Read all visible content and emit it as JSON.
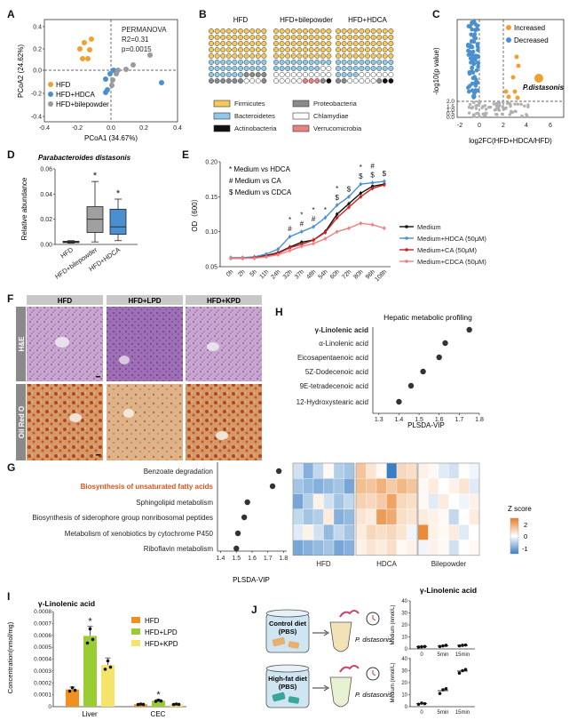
{
  "panel_letters": [
    "A",
    "B",
    "C",
    "D",
    "E",
    "F",
    "G",
    "H",
    "I",
    "J"
  ],
  "A": {
    "xlabel": "PCoA1 (34.67%)",
    "ylabel": "PCoA2 (24.62%)",
    "stats": [
      "PERMANOVA",
      "R2=0.31",
      "p=0.0015"
    ],
    "xticks": [
      "-0.4",
      "-0.2",
      "0.0",
      "0.2",
      "0.4"
    ],
    "yticks": [
      "0.4",
      "0.2",
      "0.0",
      "-0.2",
      "-0.4"
    ],
    "legend": [
      "HFD",
      "HFD+HDCA",
      "HFD+bilepowder"
    ],
    "colors": {
      "HFD": "#f0a030",
      "HFD+HDCA": "#4a90d0",
      "HFD+bilepowder": "#9a9a9a"
    }
  },
  "B": {
    "groups": [
      "HFD",
      "HFD+bilepowder",
      "HFD+HDCA"
    ],
    "legend": [
      "Firmicutes",
      "Proteobacteria",
      "Bacteroidetes",
      "Chlamydiae",
      "Actinobacteria",
      "Verrucomicrobia"
    ],
    "colors": {
      "Firmicutes": "#f5c85a",
      "Proteobacteria": "#8a8a8a",
      "Bacteroidetes": "#8ec9ea",
      "Chlamydiae": "#ffffff",
      "Actinobacteria": "#111111",
      "Verrucomicrobia": "#e88080"
    }
  },
  "C": {
    "xlabel": "log2FC(HFD+HDCA/HFD)",
    "ylabel": "-log10(p value)",
    "xticks": [
      "-2",
      "0",
      "2",
      "4",
      "6"
    ],
    "yticks": [
      "2.5",
      "2.0",
      "1.5",
      "1.0",
      "0.5",
      "0.0"
    ],
    "legend": [
      "Increased",
      "Decreased"
    ],
    "annotation": "P.distasonis",
    "colors": {
      "Increased": "#f0a030",
      "Decreased": "#4a90d0"
    }
  },
  "D": {
    "title": "Parabacteroides distasonis",
    "ylabel": "Relative abundance",
    "yticks": [
      "0.06",
      "0.04",
      "0.02",
      "0.00"
    ],
    "groups": [
      "HFD",
      "HFD+bilepowder",
      "HFD+HDCA"
    ],
    "star": "*"
  },
  "E": {
    "ylabel": "OD（600）",
    "yticks": [
      "0.20",
      "0.15",
      "0.10",
      "0.05"
    ],
    "xticks": [
      "0h",
      "2h",
      "5h",
      "11h",
      "24h",
      "32h",
      "37h",
      "48h",
      "54h",
      "60h",
      "72h",
      "80h",
      "96h",
      "108h"
    ],
    "key": [
      "* Medium vs HDCA",
      "# Medium vs CA",
      "$ Medium vs CDCA"
    ],
    "series": [
      {
        "name": "Medium",
        "color": "#111111",
        "values": [
          0.062,
          0.062,
          0.063,
          0.066,
          0.07,
          0.078,
          0.085,
          0.088,
          0.1,
          0.125,
          0.14,
          0.155,
          0.165,
          0.168
        ]
      },
      {
        "name": "Medium+HDCA (50μM)",
        "color": "#4a90d0",
        "values": [
          0.063,
          0.063,
          0.064,
          0.068,
          0.075,
          0.093,
          0.1,
          0.107,
          0.12,
          0.138,
          0.15,
          0.168,
          0.17,
          0.172
        ]
      },
      {
        "name": "Medium+CA (50μM)",
        "color": "#cc2222",
        "values": [
          0.062,
          0.062,
          0.063,
          0.065,
          0.069,
          0.077,
          0.082,
          0.088,
          0.099,
          0.12,
          0.135,
          0.15,
          0.162,
          0.167
        ]
      },
      {
        "name": "Medium+CDCA (50μM)",
        "color": "#f08080",
        "values": [
          0.062,
          0.062,
          0.062,
          0.064,
          0.067,
          0.073,
          0.079,
          0.083,
          0.09,
          0.1,
          0.105,
          0.112,
          0.11,
          0.105
        ]
      }
    ]
  },
  "F": {
    "columns": [
      "HFD",
      "HFD+LPD",
      "HFD+KPD"
    ],
    "rows": [
      "H&E",
      "Oil Red O"
    ]
  },
  "G": {
    "xlabel": "PLSDA-VIP",
    "xticks": [
      "1.4",
      "1.5",
      "1.6",
      "1.7",
      "1.8"
    ],
    "items": [
      {
        "label": "Benzoate degradation",
        "vip": 1.77,
        "highlight": false
      },
      {
        "label": "Biosynthesis of unsaturated fatty acids",
        "vip": 1.73,
        "highlight": true
      },
      {
        "label": "Sphingolipid metabolism",
        "vip": 1.57,
        "highlight": false
      },
      {
        "label": "Biosynthesis of siderophore group nonribosomal peptides",
        "vip": 1.55,
        "highlight": false
      },
      {
        "label": "Metabolism of xenobiotics by cytochrome P450",
        "vip": 1.51,
        "highlight": false
      },
      {
        "label": "Riboflavin metabolism",
        "vip": 1.5,
        "highlight": false
      }
    ],
    "heatmap_groups": [
      "HFD",
      "HDCA",
      "Bilepowder"
    ],
    "zscore_label": "Z score",
    "zscore_ticks": [
      "2",
      "0",
      "-1"
    ]
  },
  "H": {
    "title": "Hepatic metabolic profiling",
    "xlabel": "PLSDA-VIP",
    "xticks": [
      "1.3",
      "1.4",
      "1.5",
      "1.6",
      "1.7",
      "1.8"
    ],
    "items": [
      {
        "label": "γ-Linolenic acid",
        "vip": 1.75,
        "bold": true
      },
      {
        "label": "α-Linolenic acid",
        "vip": 1.63,
        "bold": false
      },
      {
        "label": "Eicosapentaenoic acid",
        "vip": 1.6,
        "bold": false
      },
      {
        "label": "5Z-Dodecenoic acid",
        "vip": 1.52,
        "bold": false
      },
      {
        "label": "9E-tetradecenoic acid",
        "vip": 1.46,
        "bold": false
      },
      {
        "label": "12-Hydroxystearic acid",
        "vip": 1.4,
        "bold": false
      }
    ]
  },
  "I": {
    "title": "γ-Linolenic acid",
    "ylabel": "Concentration(nmol/mg)",
    "yticks": [
      "0.0008",
      "0.0007",
      "0.0006",
      "0.0005",
      "0.0004",
      "0.0003",
      "0.0002",
      "0.0001",
      "0"
    ],
    "groups": [
      "Liver",
      "CEC"
    ],
    "legend": [
      "HFD",
      "HFD+LPD",
      "HFD+KPD"
    ],
    "colors": {
      "HFD": "#f09020",
      "HFD+LPD": "#9acd32",
      "HFD+KPD": "#f5e46a"
    },
    "star": "*"
  },
  "J": {
    "title": "γ-Linolenic acid",
    "diet1": [
      "Control diet",
      "(PBS)"
    ],
    "diet2": [
      "High-fat diet",
      "(PBS)"
    ],
    "bacterium": "P. distasonis",
    "ylabel": "Medium (nmol/L)",
    "xticks": [
      "0",
      "5min",
      "15min"
    ],
    "top_yticks": [
      "40",
      "30",
      "20",
      "10",
      "0"
    ],
    "bottom_yticks": [
      "40",
      "30",
      "20",
      "10",
      "0"
    ]
  }
}
